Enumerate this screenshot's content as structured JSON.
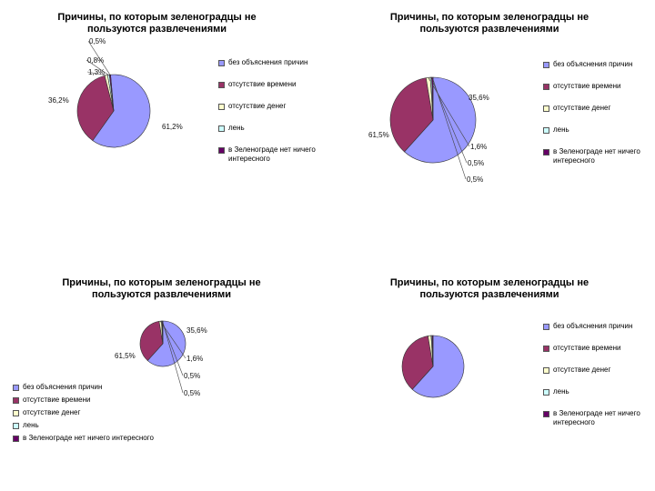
{
  "chart_data": [
    {
      "type": "pie",
      "title": "Причины, по которым зеленоградцы не пользуются развлечениями",
      "categories": [
        "без объяснения причин",
        "отсутствие времени",
        "отсутствие денег",
        "лень",
        "в Зеленограде нет ничего интересного"
      ],
      "values": [
        61.2,
        36.2,
        1.3,
        0.8,
        0.5
      ],
      "data_labels": [
        "61,2%",
        "36,2%",
        "1,3%",
        "0,8%",
        "0,5%"
      ],
      "legend_placement": "right"
    },
    {
      "type": "pie",
      "title": "Причины, по которым зеленоградцы не пользуются развлечениями",
      "categories": [
        "без объяснения причин",
        "отсутствие времени",
        "отсутствие денег",
        "лень",
        "в Зеленограде нет ничего интересного"
      ],
      "values": [
        61.5,
        35.6,
        1.6,
        0.5,
        0.5
      ],
      "data_labels": [
        "61,5%",
        "35,6%",
        "1,6%",
        "0,5%",
        "0,5%"
      ],
      "legend_placement": "right"
    },
    {
      "type": "pie",
      "title": "Причины, по которым зеленоградцы не пользуются развлечениями",
      "categories": [
        "без объяснения причин",
        "отсутствие времени",
        "отсутствие денег",
        "лень",
        "в Зеленограде нет ничего интересного"
      ],
      "values": [
        61.5,
        35.6,
        1.6,
        0.5,
        0.5
      ],
      "data_labels": [
        "61,5%",
        "35,6%",
        "1,6%",
        "0,5%",
        "0,5%"
      ],
      "legend_placement": "bottom-left"
    },
    {
      "type": "pie",
      "title": "Причины, по которым зеленоградцы не пользуются развлечениями",
      "categories": [
        "без объяснения причин",
        "отсутствие времени",
        "отсутствие денег",
        "лень",
        "в Зеленограде нет ничего интересного"
      ],
      "values": [
        61.5,
        35.6,
        1.6,
        0.5,
        0.5
      ],
      "data_labels": [
        "",
        "",
        "",
        "",
        ""
      ],
      "legend_placement": "right"
    }
  ],
  "colors": [
    "#9999ff",
    "#993366",
    "#ffffcc",
    "#ccffff",
    "#660066"
  ]
}
